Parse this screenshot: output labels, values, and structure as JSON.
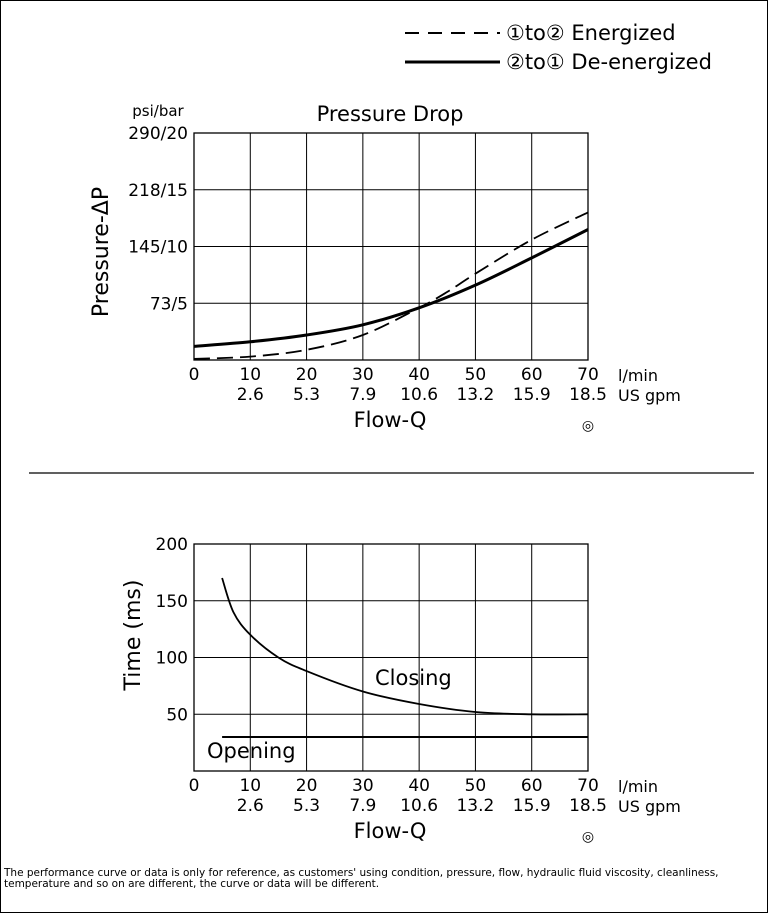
{
  "legend": {
    "entries": [
      {
        "label": "①to② Energized",
        "style": "dashed"
      },
      {
        "label": "②to① De-energized",
        "style": "solid"
      }
    ]
  },
  "colors": {
    "line": "#000000",
    "background": "#ffffff"
  },
  "footnote": "The performance curve or data is only for reference, as customers' using condition, pressure, flow, hydraulic fluid viscosity, cleanliness, temperature and so on are different, the curve or data will be different.",
  "chart_data": [
    {
      "type": "line",
      "title": "Pressure Drop",
      "xlabel": "Flow-Q",
      "ylabel": "Pressure-ΔP",
      "y_unit_label": "psi/bar",
      "x_unit_label": "l/min",
      "x2_unit_label": "US gpm",
      "mark": "◎",
      "xlim": [
        0,
        70
      ],
      "ylim": [
        0,
        20
      ],
      "grid": true,
      "x_ticks": [
        {
          "value": 0,
          "label": "0",
          "label2": ""
        },
        {
          "value": 10,
          "label": "10",
          "label2": "2.6"
        },
        {
          "value": 20,
          "label": "20",
          "label2": "5.3"
        },
        {
          "value": 30,
          "label": "30",
          "label2": "7.9"
        },
        {
          "value": 40,
          "label": "40",
          "label2": "10.6"
        },
        {
          "value": 50,
          "label": "50",
          "label2": "13.2"
        },
        {
          "value": 60,
          "label": "60",
          "label2": "15.9"
        },
        {
          "value": 70,
          "label": "70",
          "label2": "18.5"
        }
      ],
      "y_ticks": [
        {
          "value": 5,
          "label": "73/5"
        },
        {
          "value": 10,
          "label": "145/10"
        },
        {
          "value": 15,
          "label": "218/15"
        },
        {
          "value": 20,
          "label": "290/20"
        }
      ],
      "series": [
        {
          "name": "①to② Energized",
          "style": "dashed",
          "x": [
            0,
            10,
            20,
            30,
            40,
            45,
            50,
            60,
            70
          ],
          "y": [
            0.1,
            0.3,
            0.9,
            2.2,
            4.6,
            6.0,
            7.6,
            10.6,
            13.0
          ]
        },
        {
          "name": "②to① De-energized",
          "style": "solid",
          "x": [
            0,
            10,
            20,
            30,
            40,
            50,
            60,
            70
          ],
          "y": [
            1.2,
            1.6,
            2.2,
            3.1,
            4.6,
            6.6,
            9.0,
            11.5
          ]
        }
      ]
    },
    {
      "type": "line",
      "title": "",
      "xlabel": "Flow-Q",
      "ylabel": "Time (ms)",
      "x_unit_label": "l/min",
      "x2_unit_label": "US gpm",
      "mark": "◎",
      "xlim": [
        0,
        70
      ],
      "ylim": [
        0,
        200
      ],
      "grid": true,
      "x_ticks": [
        {
          "value": 0,
          "label": "0",
          "label2": ""
        },
        {
          "value": 10,
          "label": "10",
          "label2": "2.6"
        },
        {
          "value": 20,
          "label": "20",
          "label2": "5.3"
        },
        {
          "value": 30,
          "label": "30",
          "label2": "7.9"
        },
        {
          "value": 40,
          "label": "40",
          "label2": "10.6"
        },
        {
          "value": 50,
          "label": "50",
          "label2": "13.2"
        },
        {
          "value": 60,
          "label": "60",
          "label2": "15.9"
        },
        {
          "value": 70,
          "label": "70",
          "label2": "18.5"
        }
      ],
      "y_ticks": [
        {
          "value": 50,
          "label": "50"
        },
        {
          "value": 100,
          "label": "100"
        },
        {
          "value": 150,
          "label": "150"
        },
        {
          "value": 200,
          "label": "200"
        }
      ],
      "series": [
        {
          "name": "Closing",
          "style": "solid",
          "x": [
            5,
            7,
            10,
            15,
            20,
            30,
            40,
            50,
            60,
            70
          ],
          "y": [
            170,
            140,
            120,
            100,
            88,
            70,
            59,
            52,
            50,
            50
          ]
        },
        {
          "name": "Opening",
          "style": "solid",
          "x": [
            5,
            70
          ],
          "y": [
            30,
            30
          ]
        }
      ]
    }
  ]
}
